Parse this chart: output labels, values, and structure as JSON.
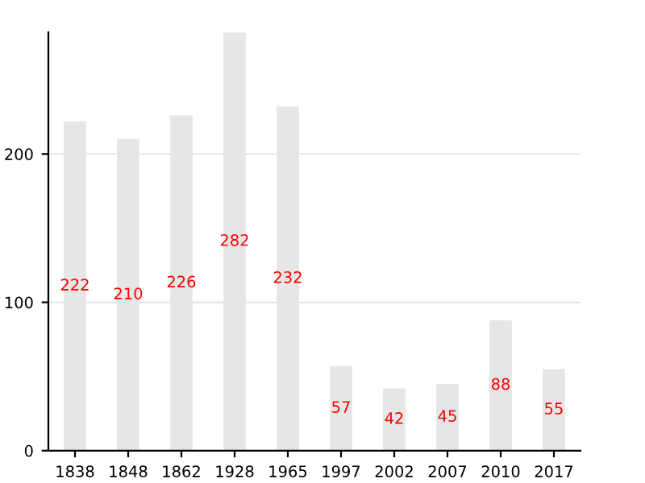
{
  "chart_data": {
    "type": "bar",
    "categories": [
      "1838",
      "1848",
      "1862",
      "1928",
      "1965",
      "1997",
      "2002",
      "2007",
      "2010",
      "2017"
    ],
    "values": [
      222,
      210,
      226,
      282,
      232,
      57,
      42,
      45,
      88,
      55
    ],
    "color": "#e6e6e6",
    "ylim": [
      0,
      282
    ],
    "yticks": [
      0,
      100,
      200
    ],
    "grid": "y",
    "data_labels": true
  }
}
